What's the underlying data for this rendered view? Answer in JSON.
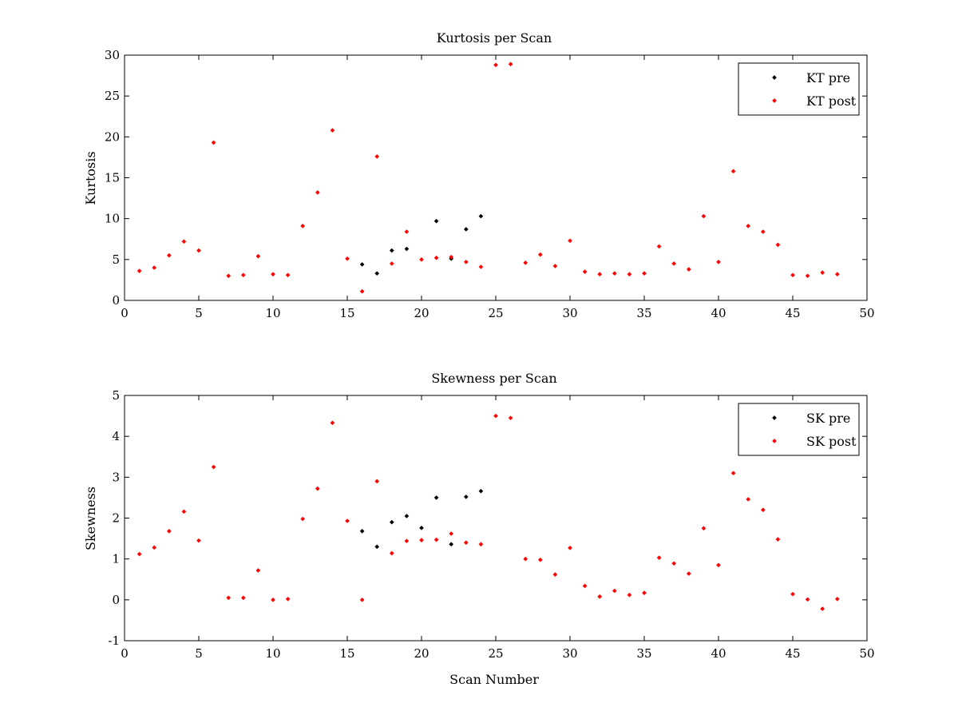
{
  "chart_data": [
    {
      "type": "scatter",
      "title": "Kurtosis per Scan",
      "xlabel": "",
      "ylabel": "Kurtosis",
      "xlim": [
        0,
        50
      ],
      "ylim": [
        0,
        30
      ],
      "xticks": [
        0,
        5,
        10,
        15,
        20,
        25,
        30,
        35,
        40,
        45,
        50
      ],
      "yticks": [
        0,
        5,
        10,
        15,
        20,
        25,
        30
      ],
      "grid": false,
      "legend_position": "top-right",
      "series": [
        {
          "name": "KT pre",
          "color": "#000000",
          "points": [
            [
              16,
              4.4
            ],
            [
              17,
              3.3
            ],
            [
              18,
              6.1
            ],
            [
              19,
              6.3
            ],
            [
              21,
              9.7
            ],
            [
              22,
              5.1
            ],
            [
              23,
              8.7
            ],
            [
              24,
              10.3
            ]
          ]
        },
        {
          "name": "KT post",
          "color": "#ff0000",
          "points": [
            [
              1,
              3.6
            ],
            [
              2,
              4.0
            ],
            [
              3,
              5.5
            ],
            [
              4,
              7.2
            ],
            [
              5,
              6.1
            ],
            [
              6,
              19.3
            ],
            [
              7,
              3.0
            ],
            [
              8,
              3.1
            ],
            [
              9,
              5.4
            ],
            [
              10,
              3.2
            ],
            [
              11,
              3.1
            ],
            [
              12,
              9.1
            ],
            [
              13,
              13.2
            ],
            [
              14,
              20.8
            ],
            [
              15,
              5.1
            ],
            [
              16,
              1.1
            ],
            [
              17,
              17.6
            ],
            [
              18,
              4.5
            ],
            [
              19,
              8.4
            ],
            [
              20,
              5.0
            ],
            [
              21,
              5.2
            ],
            [
              22,
              5.3
            ],
            [
              23,
              4.7
            ],
            [
              24,
              4.1
            ],
            [
              25,
              28.8
            ],
            [
              26,
              28.9
            ],
            [
              27,
              4.6
            ],
            [
              28,
              5.6
            ],
            [
              29,
              4.2
            ],
            [
              30,
              7.3
            ],
            [
              31,
              3.5
            ],
            [
              32,
              3.2
            ],
            [
              33,
              3.3
            ],
            [
              34,
              3.2
            ],
            [
              35,
              3.3
            ],
            [
              36,
              6.6
            ],
            [
              37,
              4.5
            ],
            [
              38,
              3.8
            ],
            [
              39,
              10.3
            ],
            [
              40,
              4.7
            ],
            [
              41,
              15.8
            ],
            [
              42,
              9.1
            ],
            [
              43,
              8.4
            ],
            [
              44,
              6.8
            ],
            [
              45,
              3.1
            ],
            [
              46,
              3.0
            ],
            [
              47,
              3.4
            ],
            [
              48,
              3.2
            ]
          ]
        }
      ]
    },
    {
      "type": "scatter",
      "title": "Skewness per Scan",
      "xlabel": "Scan Number",
      "ylabel": "Skewness",
      "xlim": [
        0,
        50
      ],
      "ylim": [
        -1,
        5
      ],
      "xticks": [
        0,
        5,
        10,
        15,
        20,
        25,
        30,
        35,
        40,
        45,
        50
      ],
      "yticks": [
        -1,
        0,
        1,
        2,
        3,
        4,
        5
      ],
      "grid": false,
      "legend_position": "top-right",
      "series": [
        {
          "name": "SK pre",
          "color": "#000000",
          "points": [
            [
              16,
              1.68
            ],
            [
              17,
              1.3
            ],
            [
              18,
              1.9
            ],
            [
              19,
              2.05
            ],
            [
              20,
              1.76
            ],
            [
              21,
              2.5
            ],
            [
              22,
              1.36
            ],
            [
              23,
              2.52
            ],
            [
              24,
              2.66
            ]
          ]
        },
        {
          "name": "SK post",
          "color": "#ff0000",
          "points": [
            [
              1,
              1.12
            ],
            [
              2,
              1.28
            ],
            [
              3,
              1.68
            ],
            [
              4,
              2.16
            ],
            [
              5,
              1.45
            ],
            [
              6,
              3.25
            ],
            [
              7,
              0.05
            ],
            [
              8,
              0.05
            ],
            [
              9,
              0.72
            ],
            [
              10,
              0.0
            ],
            [
              11,
              0.02
            ],
            [
              12,
              1.98
            ],
            [
              13,
              2.72
            ],
            [
              14,
              4.33
            ],
            [
              15,
              1.93
            ],
            [
              16,
              0.0
            ],
            [
              17,
              2.9
            ],
            [
              18,
              1.14
            ],
            [
              19,
              1.44
            ],
            [
              20,
              1.46
            ],
            [
              21,
              1.47
            ],
            [
              22,
              1.62
            ],
            [
              23,
              1.4
            ],
            [
              24,
              1.36
            ],
            [
              25,
              4.5
            ],
            [
              26,
              4.45
            ],
            [
              27,
              1.0
            ],
            [
              28,
              0.98
            ],
            [
              29,
              0.62
            ],
            [
              30,
              1.27
            ],
            [
              31,
              0.34
            ],
            [
              32,
              0.08
            ],
            [
              33,
              0.22
            ],
            [
              34,
              0.12
            ],
            [
              35,
              0.17
            ],
            [
              36,
              1.03
            ],
            [
              37,
              0.89
            ],
            [
              38,
              0.64
            ],
            [
              39,
              1.75
            ],
            [
              40,
              0.85
            ],
            [
              41,
              3.1
            ],
            [
              42,
              2.46
            ],
            [
              43,
              2.2
            ],
            [
              44,
              1.48
            ],
            [
              45,
              0.14
            ],
            [
              46,
              0.01
            ],
            [
              47,
              -0.22
            ],
            [
              48,
              0.02
            ]
          ]
        }
      ]
    }
  ]
}
